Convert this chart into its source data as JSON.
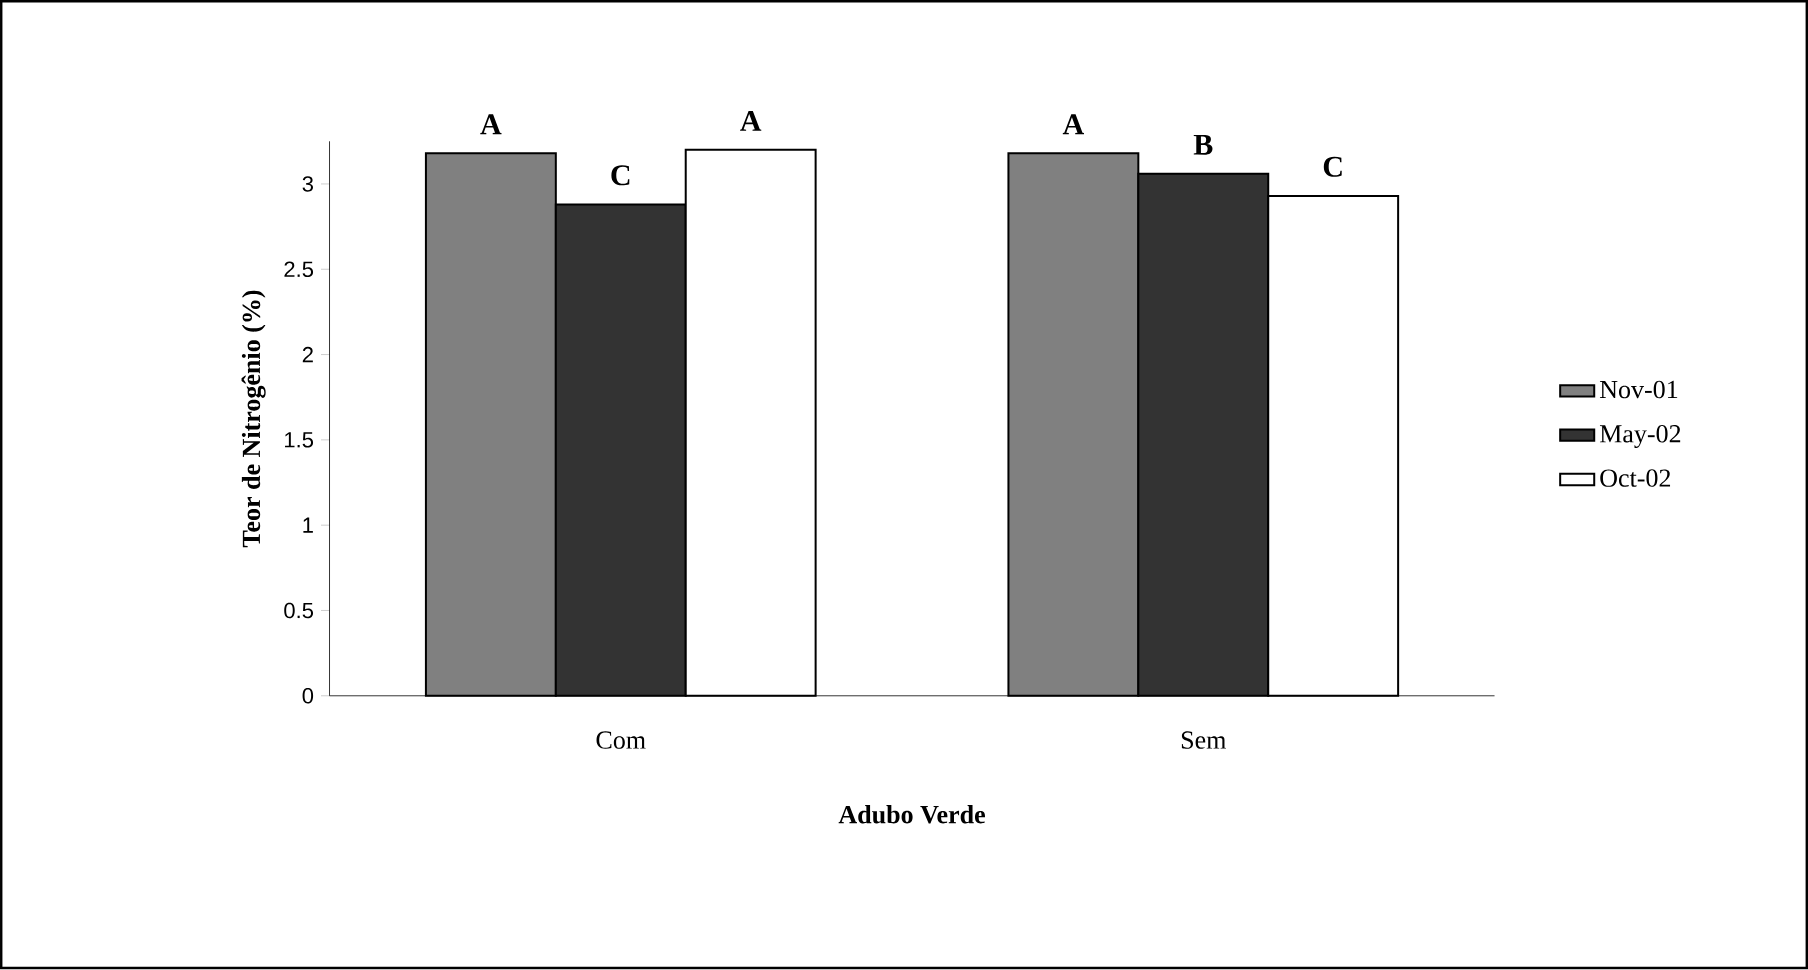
{
  "chart_data": {
    "type": "bar",
    "xlabel": "Adubo Verde",
    "ylabel": "Teor de Nitrogênio (%)",
    "categories": [
      "Com",
      "Sem"
    ],
    "series": [
      {
        "name": "Nov-01",
        "color": "#808080",
        "values": [
          3.18,
          3.18
        ]
      },
      {
        "name": "May-02",
        "color": "#333333",
        "values": [
          2.88,
          3.06
        ]
      },
      {
        "name": "Oct-02",
        "color": "#ffffff",
        "values": [
          3.2,
          2.93
        ]
      }
    ],
    "ylim": [
      0,
      3.25
    ],
    "yticks": [
      0,
      0.5,
      1,
      1.5,
      2,
      2.5,
      3
    ],
    "annotations": [
      "A",
      "C",
      "A",
      "A",
      "B",
      "C"
    ],
    "legend": "right",
    "grid": false
  }
}
